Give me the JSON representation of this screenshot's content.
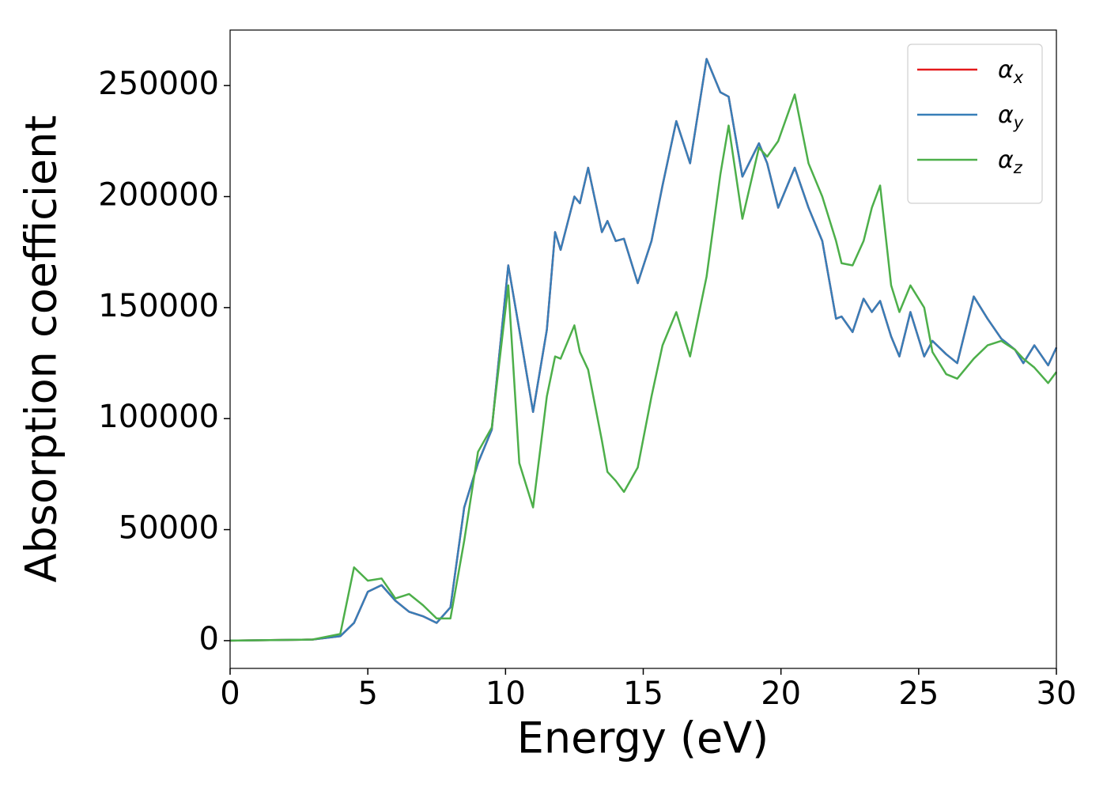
{
  "chart_data": {
    "type": "line",
    "x_label": "Energy (eV)",
    "y_label": "Absorption coefficient",
    "x": [
      0,
      3,
      4,
      4.5,
      5,
      5.5,
      6,
      6.5,
      7,
      7.5,
      8,
      8.5,
      9,
      9.5,
      10.1,
      10.5,
      11,
      11.5,
      11.8,
      12,
      12.5,
      12.7,
      13,
      13.5,
      13.7,
      14,
      14.3,
      14.8,
      15.3,
      15.7,
      16.2,
      16.7,
      17.3,
      17.8,
      18.1,
      18.6,
      19.2,
      19.5,
      19.9,
      20.5,
      21,
      21.5,
      22,
      22.2,
      22.6,
      23,
      23.3,
      23.6,
      24,
      24.3,
      24.7,
      25.2,
      25.5,
      26,
      26.4,
      27,
      27.5,
      28,
      28.5,
      28.8,
      29.2,
      29.7,
      30
    ],
    "series": [
      {
        "name": "αx",
        "color": "#e41a1c",
        "values": [
          0,
          500,
          2000,
          8000,
          22000,
          25000,
          18000,
          13000,
          11000,
          8000,
          15000,
          60000,
          80000,
          95000,
          169000,
          140000,
          103000,
          140000,
          184000,
          176000,
          200000,
          197000,
          213000,
          184000,
          189000,
          180000,
          181000,
          161000,
          180000,
          205000,
          234000,
          215000,
          262000,
          247000,
          245000,
          209000,
          224000,
          215000,
          195000,
          213000,
          195000,
          180000,
          145000,
          146000,
          139000,
          154000,
          148000,
          153000,
          137000,
          128000,
          148000,
          128000,
          135000,
          129000,
          125000,
          155000,
          145000,
          136000,
          131000,
          125000,
          133000,
          124000,
          132000
        ]
      },
      {
        "name": "αy",
        "color": "#377eb8",
        "values": [
          0,
          500,
          2000,
          8000,
          22000,
          25000,
          18000,
          13000,
          11000,
          8000,
          15000,
          60000,
          80000,
          95000,
          169000,
          140000,
          103000,
          140000,
          184000,
          176000,
          200000,
          197000,
          213000,
          184000,
          189000,
          180000,
          181000,
          161000,
          180000,
          205000,
          234000,
          215000,
          262000,
          247000,
          245000,
          209000,
          224000,
          215000,
          195000,
          213000,
          195000,
          180000,
          145000,
          146000,
          139000,
          154000,
          148000,
          153000,
          137000,
          128000,
          148000,
          128000,
          135000,
          129000,
          125000,
          155000,
          145000,
          136000,
          131000,
          125000,
          133000,
          124000,
          132000
        ]
      },
      {
        "name": "αz",
        "color": "#4daf4a",
        "values": [
          0,
          500,
          3000,
          33000,
          27000,
          28000,
          19000,
          21000,
          16000,
          10000,
          10000,
          45000,
          85000,
          96000,
          160000,
          80000,
          60000,
          110000,
          128000,
          127000,
          142000,
          130000,
          122000,
          90000,
          76000,
          72000,
          67000,
          78000,
          110000,
          133000,
          148000,
          128000,
          164000,
          210000,
          232000,
          190000,
          222000,
          218000,
          225000,
          246000,
          215000,
          200000,
          180000,
          170000,
          169000,
          180000,
          195000,
          205000,
          160000,
          148000,
          160000,
          150000,
          130000,
          120000,
          118000,
          127000,
          133000,
          135000,
          131000,
          127000,
          123000,
          116000,
          121000
        ]
      }
    ],
    "xlim": [
      0,
      30
    ],
    "xticks": [
      0,
      5,
      10,
      15,
      20,
      25,
      30
    ],
    "ylim": [
      -12500,
      275000
    ],
    "yticks": [
      0,
      50000,
      100000,
      150000,
      200000,
      250000
    ],
    "legend": "upper right"
  }
}
